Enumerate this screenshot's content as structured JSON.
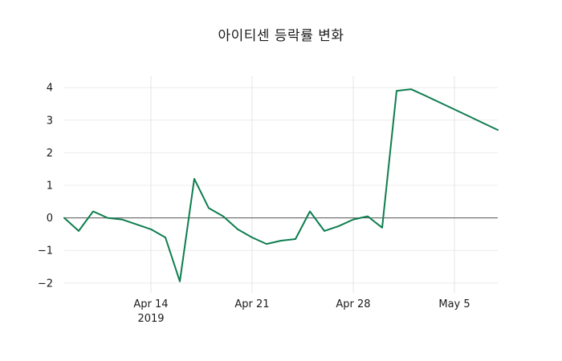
{
  "page": {
    "title": "아이티센 등락률 변화"
  },
  "chart_data": {
    "type": "line",
    "title": "아이티센 등락률 변화",
    "series_name": "등락률",
    "line_color": "#0e7d4f",
    "zero_line_color": "#555555",
    "grid": true,
    "legend": "none",
    "ylim": [
      -2.3,
      4.35
    ],
    "y_ticks": [
      -2,
      -1,
      0,
      1,
      2,
      3,
      4
    ],
    "x_domain_days": [
      0,
      30
    ],
    "x_ticks": [
      {
        "day": 6,
        "label": "Apr 14",
        "sublabel": "2019"
      },
      {
        "day": 13,
        "label": "Apr 21"
      },
      {
        "day": 20,
        "label": "Apr 28"
      },
      {
        "day": 27,
        "label": "May 5"
      }
    ],
    "points": [
      {
        "day": 0,
        "value": 0.0
      },
      {
        "day": 1,
        "value": -0.4
      },
      {
        "day": 2,
        "value": 0.2
      },
      {
        "day": 3,
        "value": 0.0
      },
      {
        "day": 4,
        "value": -0.05
      },
      {
        "day": 5,
        "value": -0.2
      },
      {
        "day": 6,
        "value": -0.35
      },
      {
        "day": 7,
        "value": -0.6
      },
      {
        "day": 8,
        "value": -1.95
      },
      {
        "day": 9,
        "value": 1.2
      },
      {
        "day": 10,
        "value": 0.3
      },
      {
        "day": 11,
        "value": 0.05
      },
      {
        "day": 12,
        "value": -0.35
      },
      {
        "day": 13,
        "value": -0.6
      },
      {
        "day": 14,
        "value": -0.8
      },
      {
        "day": 15,
        "value": -0.7
      },
      {
        "day": 16,
        "value": -0.65
      },
      {
        "day": 17,
        "value": 0.2
      },
      {
        "day": 18,
        "value": -0.4
      },
      {
        "day": 19,
        "value": -0.25
      },
      {
        "day": 20,
        "value": -0.05
      },
      {
        "day": 21,
        "value": 0.05
      },
      {
        "day": 22,
        "value": -0.3
      },
      {
        "day": 23,
        "value": 3.9
      },
      {
        "day": 24,
        "value": 3.95
      },
      {
        "day": 25,
        "value": 3.75
      },
      {
        "day": 26,
        "value": 3.54
      },
      {
        "day": 27,
        "value": 3.33
      },
      {
        "day": 28,
        "value": 3.12
      },
      {
        "day": 29,
        "value": 2.91
      },
      {
        "day": 30,
        "value": 2.7
      }
    ]
  }
}
